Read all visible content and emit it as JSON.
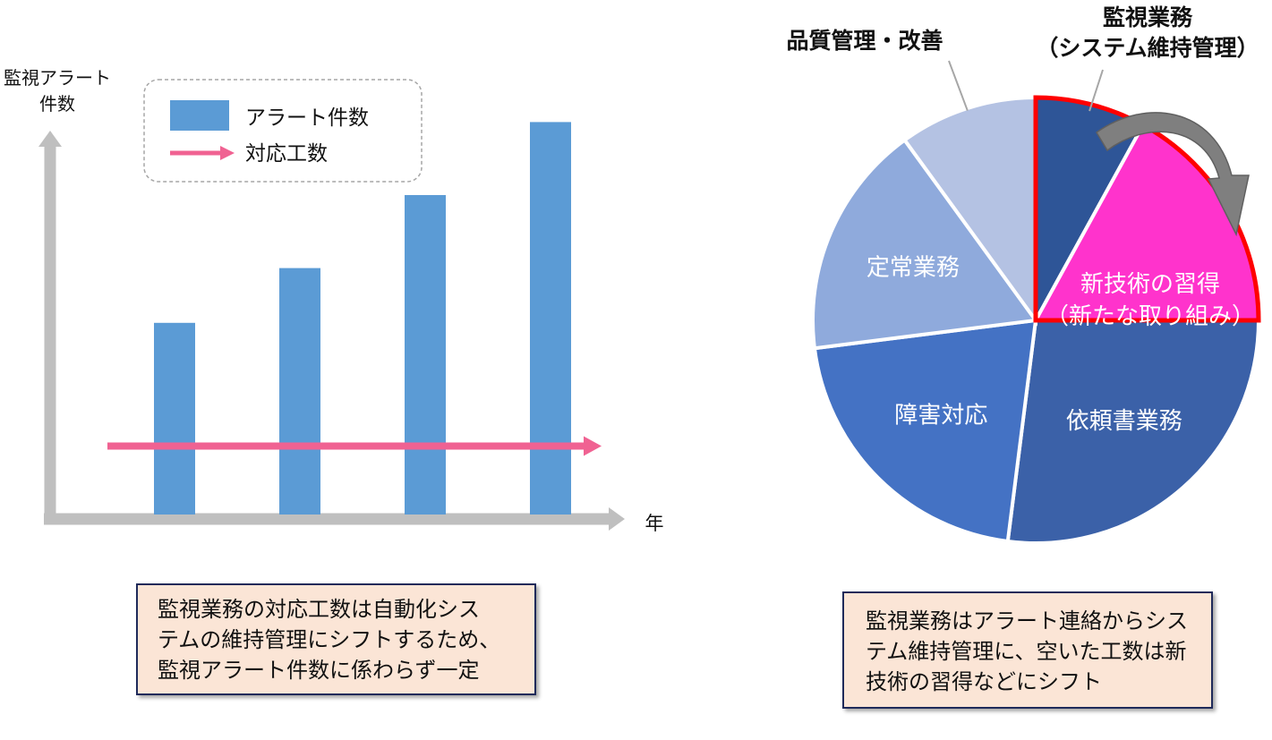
{
  "chart_data": [
    {
      "type": "bar",
      "title": "",
      "ylabel": [
        "監視アラート",
        "件数"
      ],
      "xlabel": "年",
      "categories": [
        "",
        "",
        "",
        ""
      ],
      "series": [
        {
          "name": "アラート件数",
          "kind": "bar",
          "values": [
            42,
            54,
            70,
            86
          ],
          "color": "#5b9bd5"
        },
        {
          "name": "対応工数",
          "kind": "arrow",
          "values": [
            15,
            15,
            15,
            15
          ],
          "color": "#f06292"
        }
      ],
      "ylim": [
        0,
        100
      ],
      "grid": false,
      "legend": "top-left inside"
    },
    {
      "type": "pie",
      "slices": [
        {
          "label": "監視業務（システム維持管理）",
          "value": 8,
          "color": "#2e5597",
          "label_lines": [
            "監視業務",
            "（システム維持管理）"
          ],
          "highlight": true
        },
        {
          "label": "新技術の習得（新たな取り組み）",
          "value": 17,
          "color": "#ff33cc",
          "label_lines": [
            "新技術の習得",
            "（新たな取り組み）"
          ],
          "highlight": true
        },
        {
          "label": "依頼書業務",
          "value": 27,
          "color": "#3b61a8",
          "label_lines": [
            "依頼書業務"
          ]
        },
        {
          "label": "障害対応",
          "value": 21,
          "color": "#4472c4",
          "label_lines": [
            "障害対応"
          ]
        },
        {
          "label": "定常業務",
          "value": 17,
          "color": "#8faadc",
          "label_lines": [
            "定常業務"
          ]
        },
        {
          "label": "品質管理・改善",
          "value": 10,
          "color": "#b4c2e3",
          "label_lines": [
            "品質管理・改善"
          ]
        }
      ],
      "highlight_color": "#ff0000",
      "shift_arrow": {
        "from": "監視業務（システム維持管理）",
        "to": "新技術の習得（新たな取り組み）",
        "color": "#7f7f7f"
      }
    }
  ],
  "captions": {
    "left": [
      "監視業務の対応工数は自動化シス",
      "テムの維持管理にシフトするため、",
      "監視アラート件数に係わらず一定"
    ],
    "right": [
      "監視業務はアラート連絡からシス",
      "テム維持管理に、空いた工数は新",
      "技術の習得などにシフト"
    ]
  }
}
